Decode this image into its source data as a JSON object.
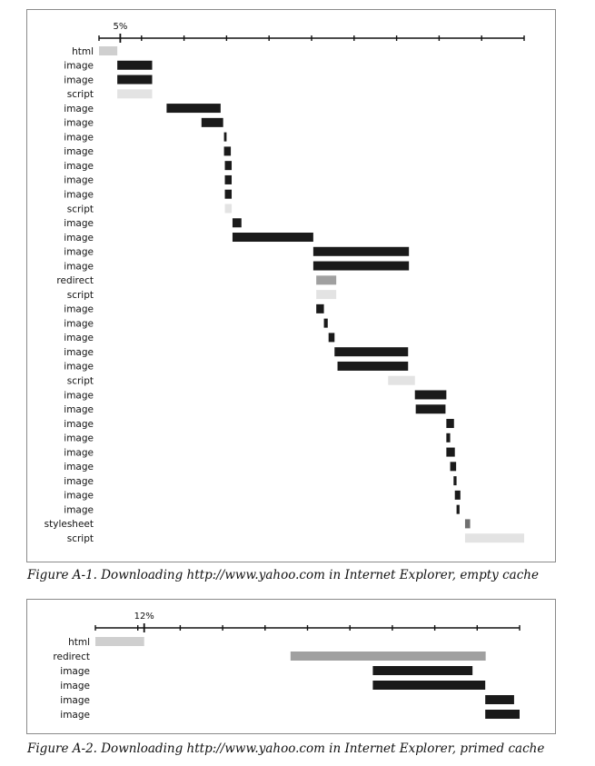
{
  "colors": {
    "image": "#1a1a1a",
    "script": "#e3e3e3",
    "html": "#cfcfcf",
    "redirect": "#a0a0a0",
    "stylesheet": "#707070"
  },
  "chart_data": [
    {
      "type": "bar",
      "subtype": "waterfall",
      "title": "Figure A-1. Downloading http://www.yahoo.com in Internet Explorer, empty cache",
      "tick_label": "5%",
      "tick_label_value": 5,
      "xlim": [
        0,
        100
      ],
      "tick_count": 10,
      "rows": [
        {
          "label": "html",
          "type": "html",
          "start": 0,
          "end": 4.3
        },
        {
          "label": "image",
          "type": "image",
          "start": 4.3,
          "end": 12.5
        },
        {
          "label": "image",
          "type": "image",
          "start": 4.3,
          "end": 12.5
        },
        {
          "label": "script",
          "type": "script",
          "start": 4.3,
          "end": 12.5
        },
        {
          "label": "image",
          "type": "image",
          "start": 15.9,
          "end": 28.6
        },
        {
          "label": "image",
          "type": "image",
          "start": 24.1,
          "end": 29.2
        },
        {
          "label": "image",
          "type": "image",
          "start": 29.4,
          "end": 30.0
        },
        {
          "label": "image",
          "type": "image",
          "start": 29.4,
          "end": 31.0
        },
        {
          "label": "image",
          "type": "image",
          "start": 29.6,
          "end": 31.2
        },
        {
          "label": "image",
          "type": "image",
          "start": 29.6,
          "end": 31.2
        },
        {
          "label": "image",
          "type": "image",
          "start": 29.6,
          "end": 31.2
        },
        {
          "label": "script",
          "type": "script",
          "start": 29.6,
          "end": 31.2
        },
        {
          "label": "image",
          "type": "image",
          "start": 31.4,
          "end": 33.5
        },
        {
          "label": "image",
          "type": "image",
          "start": 31.4,
          "end": 50.4
        },
        {
          "label": "image",
          "type": "image",
          "start": 50.4,
          "end": 72.9
        },
        {
          "label": "image",
          "type": "image",
          "start": 50.4,
          "end": 72.9
        },
        {
          "label": "redirect",
          "type": "redirect",
          "start": 51.1,
          "end": 55.8
        },
        {
          "label": "script",
          "type": "script",
          "start": 51.1,
          "end": 55.8
        },
        {
          "label": "image",
          "type": "image",
          "start": 51.1,
          "end": 52.9
        },
        {
          "label": "image",
          "type": "image",
          "start": 52.9,
          "end": 53.8
        },
        {
          "label": "image",
          "type": "image",
          "start": 54.0,
          "end": 55.4
        },
        {
          "label": "image",
          "type": "image",
          "start": 55.4,
          "end": 72.7
        },
        {
          "label": "image",
          "type": "image",
          "start": 56.1,
          "end": 72.7
        },
        {
          "label": "script",
          "type": "script",
          "start": 68.0,
          "end": 74.3
        },
        {
          "label": "image",
          "type": "image",
          "start": 74.3,
          "end": 81.7
        },
        {
          "label": "image",
          "type": "image",
          "start": 74.5,
          "end": 81.5
        },
        {
          "label": "image",
          "type": "image",
          "start": 81.7,
          "end": 83.5
        },
        {
          "label": "image",
          "type": "image",
          "start": 81.7,
          "end": 82.6
        },
        {
          "label": "image",
          "type": "image",
          "start": 81.7,
          "end": 83.7
        },
        {
          "label": "image",
          "type": "image",
          "start": 82.6,
          "end": 84.0
        },
        {
          "label": "image",
          "type": "image",
          "start": 83.4,
          "end": 84.1
        },
        {
          "label": "image",
          "type": "image",
          "start": 83.7,
          "end": 85.0
        },
        {
          "label": "image",
          "type": "image",
          "start": 84.1,
          "end": 84.8
        },
        {
          "label": "stylesheet",
          "type": "stylesheet",
          "start": 86.1,
          "end": 87.3
        },
        {
          "label": "script",
          "type": "script",
          "start": 86.1,
          "end": 100
        }
      ]
    },
    {
      "type": "bar",
      "subtype": "waterfall",
      "title": "Figure A-2. Downloading http://www.yahoo.com in Internet Explorer, primed cache",
      "tick_label": "12%",
      "tick_label_value": 11.5,
      "xlim": [
        0,
        100
      ],
      "tick_count": 10,
      "rows": [
        {
          "label": "html",
          "type": "html",
          "start": 0,
          "end": 11.5
        },
        {
          "label": "redirect",
          "type": "redirect",
          "start": 46.0,
          "end": 92.0
        },
        {
          "label": "image",
          "type": "image",
          "start": 65.4,
          "end": 88.9
        },
        {
          "label": "image",
          "type": "image",
          "start": 65.4,
          "end": 91.9
        },
        {
          "label": "image",
          "type": "image",
          "start": 91.9,
          "end": 98.7
        },
        {
          "label": "image",
          "type": "image",
          "start": 91.9,
          "end": 100
        }
      ]
    }
  ]
}
